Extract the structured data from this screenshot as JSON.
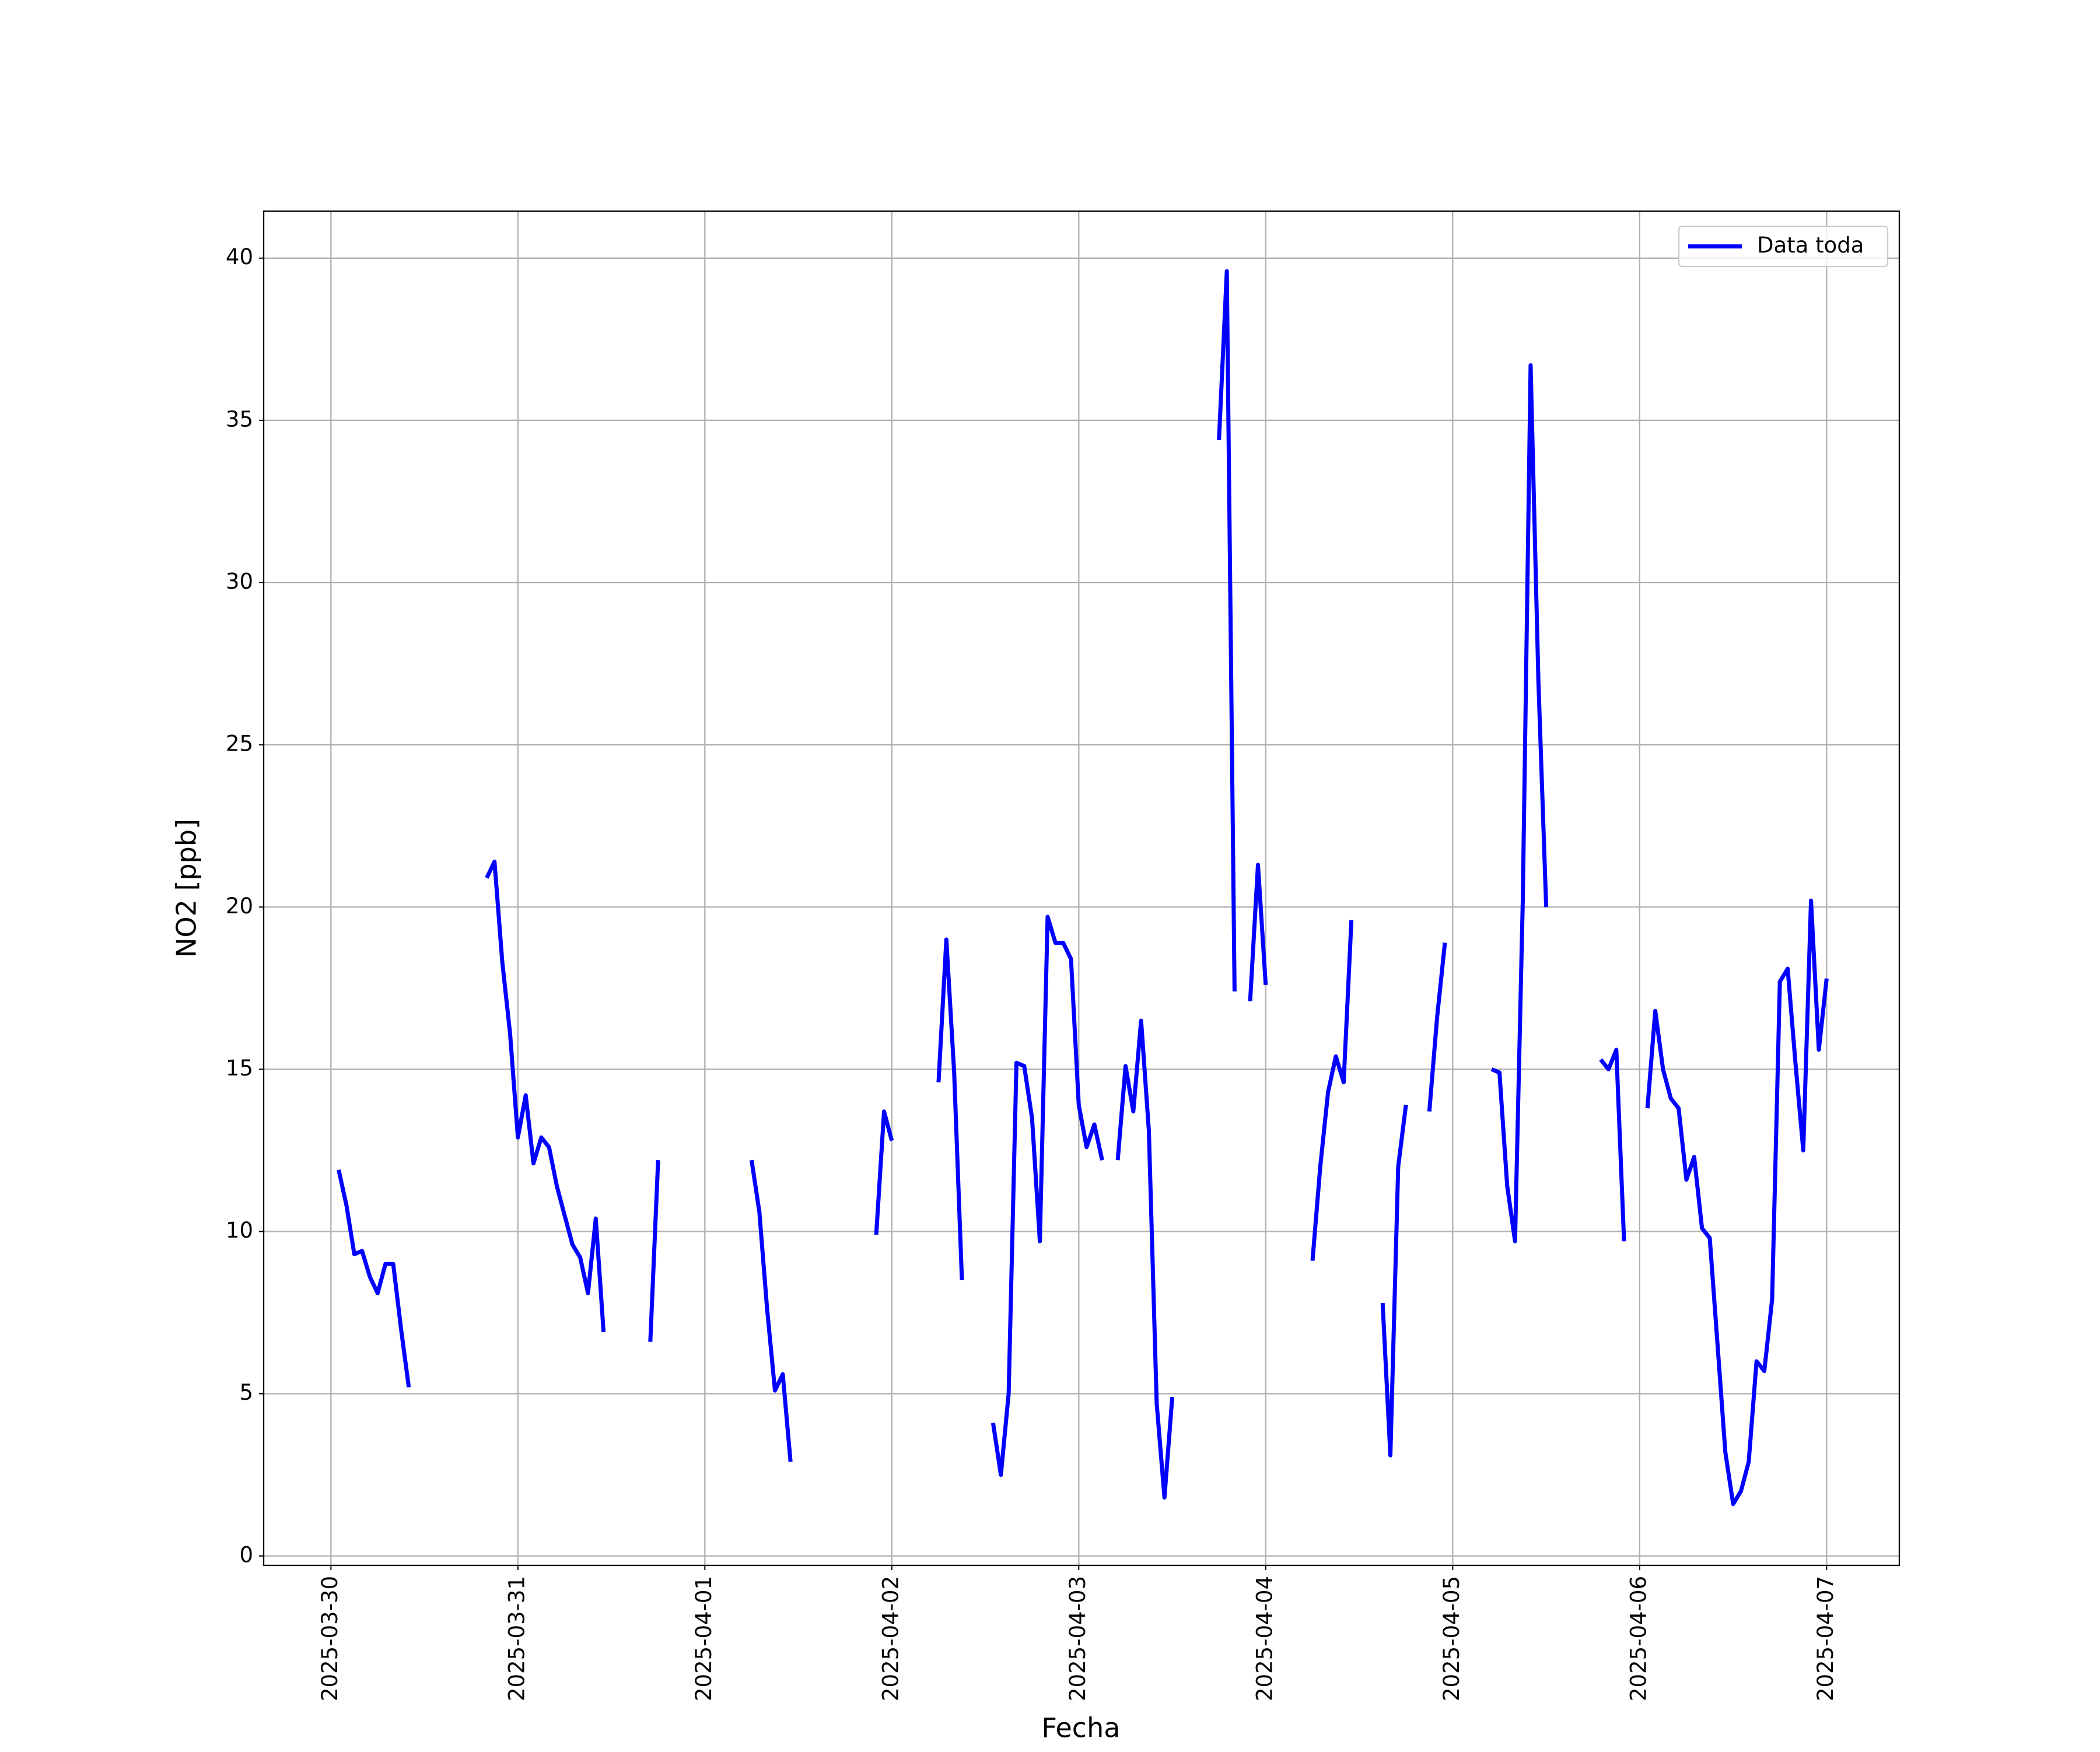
{
  "chart_data": {
    "type": "line",
    "xlabel": "Fecha",
    "ylabel": "NO2 [ppb]",
    "xlim": [
      "2025-03-29T15:22",
      "2025-04-07T09:20"
    ],
    "xticks": [
      "2025-03-30",
      "2025-03-31",
      "2025-04-01",
      "2025-04-02",
      "2025-04-03",
      "2025-04-04",
      "2025-04-05",
      "2025-04-06",
      "2025-04-07"
    ],
    "ylim": [
      -0.29,
      41.45
    ],
    "yticks": [
      0,
      5,
      10,
      15,
      20,
      25,
      30,
      35,
      40
    ],
    "grid": true,
    "legend": "upper right",
    "series": [
      {
        "name": "Data toda",
        "color": "#0000ff",
        "x": [
          "2025-03-30T01:00",
          "2025-03-30T02:00",
          "2025-03-30T03:00",
          "2025-03-30T04:00",
          "2025-03-30T05:00",
          "2025-03-30T06:00",
          "2025-03-30T07:00",
          "2025-03-30T08:00",
          "2025-03-30T09:00",
          "2025-03-30T10:00",
          "2025-03-30T11:00",
          "2025-03-30T20:00",
          "2025-03-30T21:00",
          "2025-03-30T22:00",
          "2025-03-30T23:00",
          "2025-03-31T00:00",
          "2025-03-31T01:00",
          "2025-03-31T02:00",
          "2025-03-31T03:00",
          "2025-03-31T04:00",
          "2025-03-31T05:00",
          "2025-03-31T06:00",
          "2025-03-31T07:00",
          "2025-03-31T08:00",
          "2025-03-31T09:00",
          "2025-03-31T10:00",
          "2025-03-31T11:00",
          "2025-03-31T12:00",
          "2025-03-31T17:00",
          "2025-03-31T18:00",
          "2025-03-31T19:00",
          "2025-04-01T06:00",
          "2025-04-01T07:00",
          "2025-04-01T08:00",
          "2025-04-01T09:00",
          "2025-04-01T10:00",
          "2025-04-01T11:00",
          "2025-04-01T12:00",
          "2025-04-01T22:00",
          "2025-04-01T23:00",
          "2025-04-02T00:00",
          "2025-04-02T01:00",
          "2025-04-02T06:00",
          "2025-04-02T07:00",
          "2025-04-02T08:00",
          "2025-04-02T09:00",
          "2025-04-02T10:00",
          "2025-04-02T13:00",
          "2025-04-02T14:00",
          "2025-04-02T15:00",
          "2025-04-02T16:00",
          "2025-04-02T17:00",
          "2025-04-02T18:00",
          "2025-04-02T19:00",
          "2025-04-02T20:00",
          "2025-04-02T21:00",
          "2025-04-02T22:00",
          "2025-04-02T23:00",
          "2025-04-03T00:00",
          "2025-04-03T01:00",
          "2025-04-03T02:00",
          "2025-04-03T03:00",
          "2025-04-03T04:00",
          "2025-04-03T05:00",
          "2025-04-03T06:00",
          "2025-04-03T07:00",
          "2025-04-03T08:00",
          "2025-04-03T09:00",
          "2025-04-03T10:00",
          "2025-04-03T11:00",
          "2025-04-03T12:00",
          "2025-04-03T13:00",
          "2025-04-03T18:00",
          "2025-04-03T19:00",
          "2025-04-03T20:00",
          "2025-04-03T21:00",
          "2025-04-03T22:00",
          "2025-04-03T23:00",
          "2025-04-04T00:00",
          "2025-04-04T01:00",
          "2025-04-04T06:00",
          "2025-04-04T07:00",
          "2025-04-04T08:00",
          "2025-04-04T09:00",
          "2025-04-04T10:00",
          "2025-04-04T11:00",
          "2025-04-04T12:00",
          "2025-04-04T15:00",
          "2025-04-04T16:00",
          "2025-04-04T17:00",
          "2025-04-04T18:00",
          "2025-04-04T19:00",
          "2025-04-04T21:00",
          "2025-04-04T22:00",
          "2025-04-04T23:00",
          "2025-04-05T00:00",
          "2025-04-05T05:00",
          "2025-04-05T06:00",
          "2025-04-05T07:00",
          "2025-04-05T08:00",
          "2025-04-05T09:00",
          "2025-04-05T10:00",
          "2025-04-05T11:00",
          "2025-04-05T12:00",
          "2025-04-05T13:00",
          "2025-04-05T19:00",
          "2025-04-05T20:00",
          "2025-04-05T21:00",
          "2025-04-05T22:00",
          "2025-04-05T23:00",
          "2025-04-06T01:00",
          "2025-04-06T02:00",
          "2025-04-06T03:00",
          "2025-04-06T04:00",
          "2025-04-06T05:00",
          "2025-04-06T06:00",
          "2025-04-06T07:00",
          "2025-04-06T08:00",
          "2025-04-06T09:00",
          "2025-04-06T10:00",
          "2025-04-06T11:00",
          "2025-04-06T12:00",
          "2025-04-06T13:00",
          "2025-04-06T14:00",
          "2025-04-06T15:00",
          "2025-04-06T16:00",
          "2025-04-06T17:00",
          "2025-04-06T18:00",
          "2025-04-06T19:00",
          "2025-04-06T20:00",
          "2025-04-06T21:00",
          "2025-04-06T22:00",
          "2025-04-06T23:00",
          "2025-04-07T00:00"
        ],
        "values": [
          11.9,
          10.8,
          9.3,
          9.4,
          8.6,
          8.1,
          9.0,
          9.0,
          7.0,
          5.2,
          null,
          20.9,
          21.4,
          18.3,
          16.1,
          12.9,
          14.2,
          12.1,
          12.9,
          12.6,
          11.4,
          10.5,
          9.6,
          9.2,
          8.1,
          10.4,
          6.9,
          null,
          6.6,
          12.2,
          null,
          12.2,
          10.6,
          7.6,
          5.1,
          5.6,
          2.9,
          null,
          9.9,
          13.7,
          12.8,
          null,
          14.6,
          19.0,
          14.9,
          8.5,
          null,
          4.1,
          2.5,
          5.0,
          15.2,
          15.1,
          13.5,
          9.7,
          19.7,
          18.9,
          18.9,
          18.4,
          13.9,
          12.6,
          13.3,
          12.2,
          null,
          12.2,
          15.1,
          13.7,
          16.5,
          13.1,
          4.7,
          1.8,
          4.9,
          null,
          34.4,
          39.6,
          17.4,
          null,
          17.1,
          21.3,
          17.6,
          null,
          9.1,
          12.0,
          14.3,
          15.4,
          14.6,
          19.6,
          null,
          7.8,
          3.1,
          12.0,
          13.9,
          null,
          13.7,
          16.6,
          18.9,
          null,
          15.0,
          14.9,
          11.4,
          9.7,
          20.2,
          36.7,
          27.0,
          20.0,
          null,
          15.3,
          15.0,
          15.6,
          9.7,
          null,
          13.8,
          16.8,
          15.0,
          14.1,
          13.8,
          11.6,
          12.3,
          10.1,
          9.8,
          6.5,
          3.2,
          1.6,
          2.0,
          2.9,
          6.0,
          5.7,
          7.9,
          17.7,
          18.1,
          15.2,
          12.5,
          20.2,
          15.6,
          17.8
        ]
      }
    ]
  }
}
